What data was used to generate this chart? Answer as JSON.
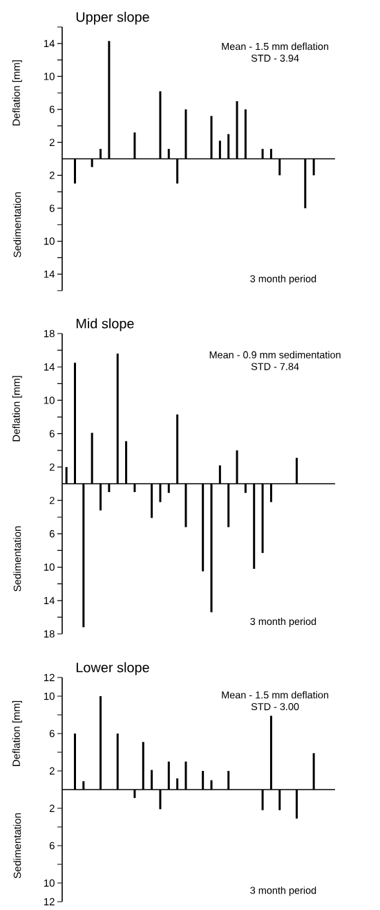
{
  "chart_data": [
    {
      "type": "bar",
      "title": "Upper slope",
      "ylabel": "Deflation [mm]",
      "xlabel": "3 month period",
      "annotations": [
        "Mean - 1.5 mm deflation",
        "STD - 3.94",
        "Sedimentation"
      ],
      "categories": [
        null,
        null,
        null,
        null,
        null,
        null,
        null,
        null,
        null,
        null,
        null,
        null,
        null,
        null,
        null,
        null,
        null,
        null,
        null,
        null,
        null,
        null,
        null,
        null,
        null,
        null,
        null,
        null,
        null,
        null,
        null,
        null
      ],
      "values": [
        null,
        -3,
        null,
        -1,
        1.2,
        14.3,
        null,
        null,
        3.2,
        null,
        null,
        8.2,
        1.2,
        -3,
        6,
        null,
        null,
        5.2,
        2.2,
        3,
        7,
        6,
        null,
        1.2,
        1.2,
        -2,
        null,
        null,
        -6,
        -2,
        null,
        null
      ],
      "color": "#000000",
      "ylim": [
        -16,
        16
      ],
      "yticks": [
        14,
        10,
        6,
        2,
        {
          "value": 16,
          "label": null
        },
        {
          "value": 12,
          "label": null
        },
        {
          "value": 8,
          "label": null
        },
        {
          "value": 4,
          "label": null
        },
        {
          "value": -2,
          "label": "2"
        },
        {
          "value": -6,
          "label": "6"
        },
        {
          "value": -10,
          "label": "10"
        },
        {
          "value": -14,
          "label": "14"
        },
        {
          "value": -4,
          "label": null
        },
        {
          "value": -8,
          "label": null
        },
        {
          "value": -12,
          "label": null
        },
        {
          "value": -16,
          "label": null
        }
      ],
      "tick_labels": "y"
    },
    {
      "type": "bar",
      "title": "Mid slope",
      "ylabel": "Deflation [mm]",
      "xlabel": "3 month period",
      "annotations": [
        "Mean - 0.9 mm sedimentation",
        "STD - 7.84",
        "Sedimentation"
      ],
      "categories": [
        null,
        null,
        null,
        null,
        null,
        null,
        null,
        null,
        null,
        null,
        null,
        null,
        null,
        null,
        null,
        null,
        null,
        null,
        null,
        null,
        null,
        null,
        null,
        null,
        null,
        null,
        null,
        null,
        null,
        null,
        null,
        null
      ],
      "values": [
        2,
        14.5,
        -17.2,
        6.1,
        -3.2,
        -1,
        15.6,
        5.1,
        -1,
        null,
        -4.1,
        -2.2,
        -1.1,
        8.3,
        -5.2,
        null,
        -10.5,
        -15.4,
        2.2,
        -5.2,
        4,
        -1.1,
        -10.2,
        -8.3,
        -2.2,
        null,
        null,
        3.1,
        null,
        null,
        null,
        null
      ],
      "color": "#000000",
      "ylim": [
        -18,
        18
      ],
      "yticks": [
        18,
        14,
        10,
        6,
        2,
        {
          "value": 16,
          "label": null
        },
        {
          "value": 12,
          "label": null
        },
        {
          "value": 8,
          "label": null
        },
        {
          "value": 4,
          "label": null
        },
        {
          "value": -2,
          "label": "2"
        },
        {
          "value": -6,
          "label": "6"
        },
        {
          "value": -10,
          "label": "10"
        },
        {
          "value": -14,
          "label": "14"
        },
        {
          "value": -18,
          "label": "18"
        },
        {
          "value": -4,
          "label": null
        },
        {
          "value": -8,
          "label": null
        },
        {
          "value": -12,
          "label": null
        },
        {
          "value": -16,
          "label": null
        }
      ],
      "tick_labels": "y"
    },
    {
      "type": "bar",
      "title": "Lower slope",
      "ylabel": "Deflation [mm]",
      "xlabel": "3 month period",
      "annotations": [
        "Mean - 1.5 mm deflation",
        "STD - 3.00",
        "Sedimentation"
      ],
      "categories": [
        null,
        null,
        null,
        null,
        null,
        null,
        null,
        null,
        null,
        null,
        null,
        null,
        null,
        null,
        null,
        null,
        null,
        null,
        null,
        null,
        null,
        null,
        null,
        null,
        null,
        null,
        null,
        null,
        null,
        null,
        null,
        null
      ],
      "values": [
        null,
        6,
        0.9,
        null,
        10,
        null,
        6,
        null,
        -0.9,
        5.1,
        2.1,
        -2.1,
        3,
        1.2,
        3,
        null,
        2,
        1,
        null,
        2,
        null,
        null,
        null,
        -2.2,
        7.9,
        -2.2,
        null,
        -3.1,
        null,
        3.9,
        null,
        null
      ],
      "color": "#000000",
      "ylim": [
        -12,
        12
      ],
      "yticks": [
        12,
        10,
        6,
        2,
        {
          "value": 8,
          "label": null
        },
        {
          "value": 4,
          "label": null
        },
        {
          "value": -2,
          "label": "2"
        },
        {
          "value": -6,
          "label": "6"
        },
        {
          "value": -10,
          "label": "10"
        },
        {
          "value": -12,
          "label": "12"
        },
        {
          "value": -4,
          "label": null
        },
        {
          "value": -8,
          "label": null
        }
      ],
      "tick_labels": "y"
    }
  ]
}
